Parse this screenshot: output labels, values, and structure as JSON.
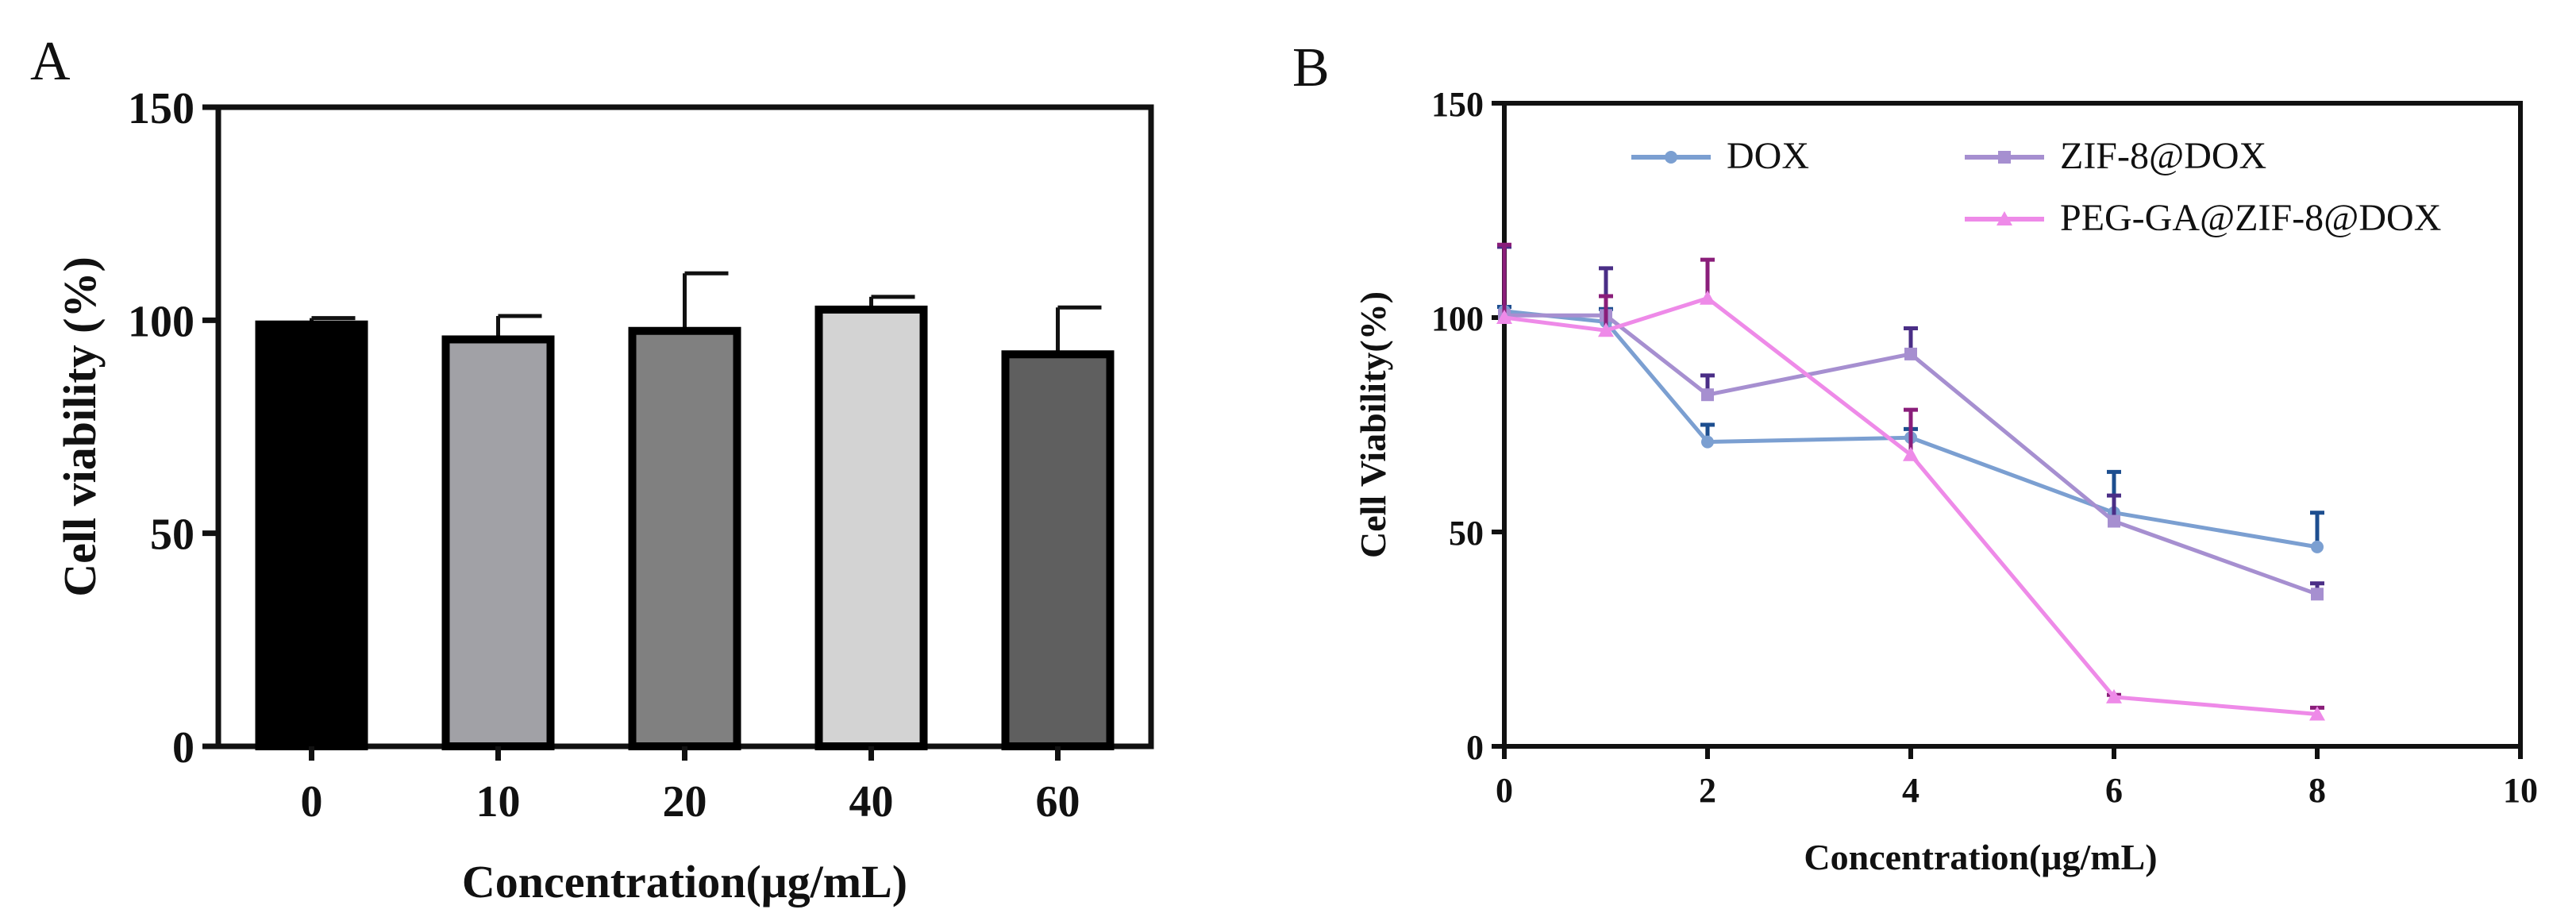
{
  "chart_data": [
    {
      "panel": "A",
      "type": "bar",
      "title": "",
      "xlabel": "Concentration(μg/mL)",
      "ylabel": "Cell viability (%)",
      "ylim": [
        0,
        150
      ],
      "yticks": [
        0,
        50,
        100,
        150
      ],
      "grid": false,
      "categories": [
        "0",
        "10",
        "20",
        "40",
        "60"
      ],
      "values": [
        99,
        95.5,
        97.5,
        102.5,
        92
      ],
      "errors": [
        1.5,
        5.5,
        13.5,
        3,
        11
      ],
      "colors": [
        "#000000",
        "#a1a1a6",
        "#808080",
        "#d3d3d3",
        "#5f5f5f"
      ]
    },
    {
      "panel": "B",
      "type": "line",
      "title": "",
      "xlabel": "Concentration(μg/mL)",
      "ylabel": "Cell Viability(%)",
      "xlim": [
        0,
        10
      ],
      "ylim": [
        0,
        150
      ],
      "xticks": [
        0,
        2,
        4,
        6,
        8,
        10
      ],
      "yticks": [
        0,
        50,
        100,
        150
      ],
      "grid": false,
      "legend_position": "top",
      "x": [
        0,
        1,
        2,
        4,
        6,
        8
      ],
      "series": [
        {
          "name": "DOX",
          "values": [
            101.5,
            99,
            71,
            72,
            54.5,
            46.5
          ],
          "errors": [
            1,
            3,
            4,
            2,
            9.5,
            8
          ],
          "color": "#7b9fd1",
          "error_color": "#1d4e8f"
        },
        {
          "name": "ZIF-8@DOX",
          "values": [
            100.5,
            100.5,
            82,
            91.5,
            52.5,
            35.5
          ],
          "errors": [
            16,
            11,
            4.5,
            6,
            6,
            2.5
          ],
          "color": "#a68fd0",
          "error_color": "#4a2e86"
        },
        {
          "name": "PEG-GA@ZIF-8@DOX",
          "values": [
            100,
            97,
            104.5,
            68,
            11.5,
            7.5
          ],
          "errors": [
            17,
            8,
            9,
            10.5,
            0.5,
            1.5
          ],
          "color": "#ee8ae8",
          "error_color": "#8a1e7a"
        }
      ]
    }
  ]
}
